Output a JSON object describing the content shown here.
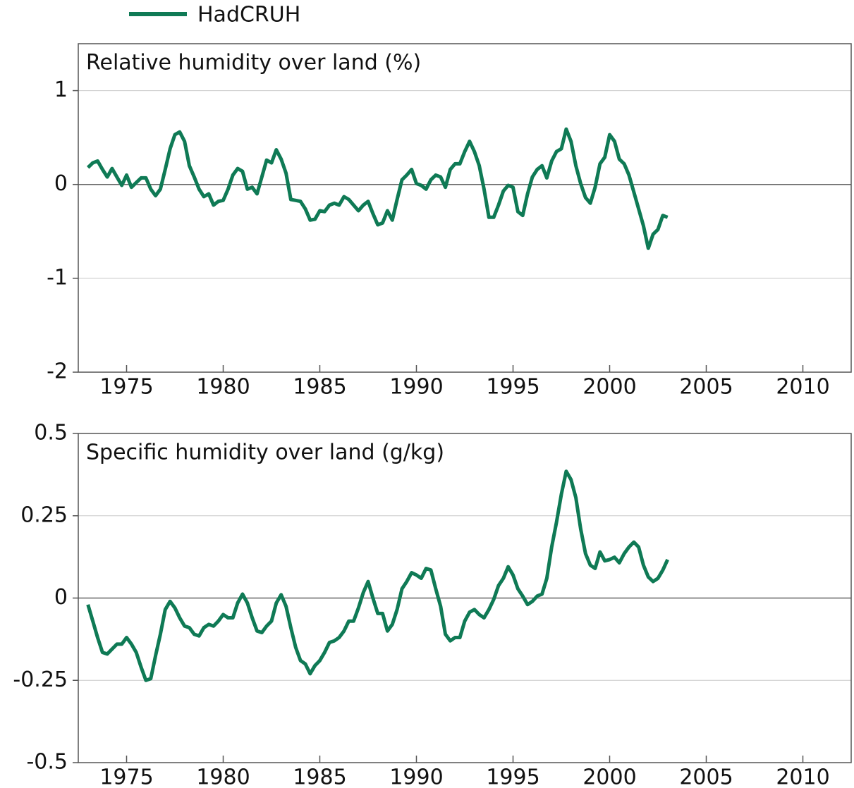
{
  "chart_data": [
    {
      "type": "line",
      "title": "Relative humidity over land (%)",
      "x": [
        1973,
        1973.25,
        1973.5,
        1973.75,
        1974,
        1974.25,
        1974.5,
        1974.75,
        1975,
        1975.25,
        1975.5,
        1975.75,
        1976,
        1976.25,
        1976.5,
        1976.75,
        1977,
        1977.25,
        1977.5,
        1977.75,
        1978,
        1978.25,
        1978.5,
        1978.75,
        1979,
        1979.25,
        1979.5,
        1979.75,
        1980,
        1980.25,
        1980.5,
        1980.75,
        1981,
        1981.25,
        1981.5,
        1981.75,
        1982,
        1982.25,
        1982.5,
        1982.75,
        1983,
        1983.25,
        1983.5,
        1983.75,
        1984,
        1984.25,
        1984.5,
        1984.75,
        1985,
        1985.25,
        1985.5,
        1985.75,
        1986,
        1986.25,
        1986.5,
        1986.75,
        1987,
        1987.25,
        1987.5,
        1987.75,
        1988,
        1988.25,
        1988.5,
        1988.75,
        1989,
        1989.25,
        1989.5,
        1989.75,
        1990,
        1990.25,
        1990.5,
        1990.75,
        1991,
        1991.25,
        1991.5,
        1991.75,
        1992,
        1992.25,
        1992.5,
        1992.75,
        1993,
        1993.25,
        1993.5,
        1993.75,
        1994,
        1994.25,
        1994.5,
        1994.75,
        1995,
        1995.25,
        1995.5,
        1995.75,
        1996,
        1996.25,
        1996.5,
        1996.75,
        1997,
        1997.25,
        1997.5,
        1997.75,
        1998,
        1998.25,
        1998.5,
        1998.75,
        1999,
        1999.25,
        1999.5,
        1999.75,
        2000,
        2000.25,
        2000.5,
        2000.75,
        2001,
        2001.25,
        2001.5,
        2001.75,
        2002,
        2002.25,
        2002.5,
        2002.75,
        2003
      ],
      "series": [
        {
          "name": "HadCRUH",
          "color": "#0f7a55",
          "values": [
            0.18,
            0.23,
            0.25,
            0.16,
            0.08,
            0.17,
            0.08,
            -0.01,
            0.1,
            -0.03,
            0.02,
            0.07,
            0.07,
            -0.05,
            -0.12,
            -0.05,
            0.16,
            0.38,
            0.53,
            0.56,
            0.46,
            0.2,
            0.08,
            -0.05,
            -0.13,
            -0.1,
            -0.22,
            -0.18,
            -0.17,
            -0.05,
            0.1,
            0.17,
            0.14,
            -0.05,
            -0.03,
            -0.1,
            0.08,
            0.26,
            0.23,
            0.37,
            0.27,
            0.12,
            -0.16,
            -0.17,
            -0.18,
            -0.26,
            -0.38,
            -0.37,
            -0.28,
            -0.29,
            -0.22,
            -0.2,
            -0.22,
            -0.13,
            -0.16,
            -0.22,
            -0.28,
            -0.22,
            -0.18,
            -0.31,
            -0.43,
            -0.41,
            -0.28,
            -0.38,
            -0.16,
            0.05,
            0.1,
            0.16,
            0.01,
            -0.01,
            -0.05,
            0.05,
            0.1,
            0.08,
            -0.03,
            0.16,
            0.22,
            0.22,
            0.35,
            0.46,
            0.35,
            0.2,
            -0.05,
            -0.35,
            -0.35,
            -0.22,
            -0.07,
            -0.01,
            -0.03,
            -0.29,
            -0.33,
            -0.1,
            0.08,
            0.16,
            0.2,
            0.07,
            0.25,
            0.35,
            0.38,
            0.59,
            0.46,
            0.2,
            0.01,
            -0.14,
            -0.2,
            -0.03,
            0.22,
            0.29,
            0.53,
            0.46,
            0.27,
            0.22,
            0.1,
            -0.08,
            -0.26,
            -0.44,
            -0.68,
            -0.53,
            -0.48,
            -0.33,
            -0.35
          ]
        }
      ],
      "xlim": [
        1972.5,
        2012.5
      ],
      "xticks": [
        1975,
        1980,
        1985,
        1990,
        1995,
        2000,
        2005,
        2010
      ],
      "ylim": [
        -2,
        1.5
      ],
      "yticks": [
        -2,
        -1,
        0,
        1
      ],
      "grid": true
    },
    {
      "type": "line",
      "title": "Specific humidity over land (g/kg)",
      "x": [
        1973,
        1973.25,
        1973.5,
        1973.75,
        1974,
        1974.25,
        1974.5,
        1974.75,
        1975,
        1975.25,
        1975.5,
        1975.75,
        1976,
        1976.25,
        1976.5,
        1976.75,
        1977,
        1977.25,
        1977.5,
        1977.75,
        1978,
        1978.25,
        1978.5,
        1978.75,
        1979,
        1979.25,
        1979.5,
        1979.75,
        1980,
        1980.25,
        1980.5,
        1980.75,
        1981,
        1981.25,
        1981.5,
        1981.75,
        1982,
        1982.25,
        1982.5,
        1982.75,
        1983,
        1983.25,
        1983.5,
        1983.75,
        1984,
        1984.25,
        1984.5,
        1984.75,
        1985,
        1985.25,
        1985.5,
        1985.75,
        1986,
        1986.25,
        1986.5,
        1986.75,
        1987,
        1987.25,
        1987.5,
        1987.75,
        1988,
        1988.25,
        1988.5,
        1988.75,
        1989,
        1989.25,
        1989.5,
        1989.75,
        1990,
        1990.25,
        1990.5,
        1990.75,
        1991,
        1991.25,
        1991.5,
        1991.75,
        1992,
        1992.25,
        1992.5,
        1992.75,
        1993,
        1993.25,
        1993.5,
        1993.75,
        1994,
        1994.25,
        1994.5,
        1994.75,
        1995,
        1995.25,
        1995.5,
        1995.75,
        1996,
        1996.25,
        1996.5,
        1996.75,
        1997,
        1997.25,
        1997.5,
        1997.75,
        1998,
        1998.25,
        1998.5,
        1998.75,
        1999,
        1999.25,
        1999.5,
        1999.75,
        2000,
        2000.25,
        2000.5,
        2000.75,
        2001,
        2001.25,
        2001.5,
        2001.75,
        2002,
        2002.25,
        2002.5,
        2002.75,
        2003
      ],
      "series": [
        {
          "color": "#0f7a55",
          "values": [
            -0.02,
            -0.07,
            -0.12,
            -0.165,
            -0.17,
            -0.155,
            -0.14,
            -0.14,
            -0.12,
            -0.14,
            -0.165,
            -0.21,
            -0.25,
            -0.245,
            -0.175,
            -0.11,
            -0.035,
            -0.01,
            -0.03,
            -0.06,
            -0.085,
            -0.09,
            -0.11,
            -0.115,
            -0.09,
            -0.08,
            -0.085,
            -0.07,
            -0.05,
            -0.06,
            -0.06,
            -0.015,
            0.012,
            -0.015,
            -0.06,
            -0.1,
            -0.105,
            -0.085,
            -0.07,
            -0.015,
            0.01,
            -0.025,
            -0.09,
            -0.15,
            -0.19,
            -0.2,
            -0.23,
            -0.205,
            -0.19,
            -0.165,
            -0.135,
            -0.13,
            -0.12,
            -0.1,
            -0.07,
            -0.07,
            -0.03,
            0.017,
            0.05,
            0,
            -0.047,
            -0.047,
            -0.1,
            -0.08,
            -0.035,
            0.028,
            0.05,
            0.077,
            0.07,
            0.06,
            0.09,
            0.085,
            0.028,
            -0.025,
            -0.11,
            -0.13,
            -0.12,
            -0.12,
            -0.07,
            -0.043,
            -0.035,
            -0.05,
            -0.06,
            -0.035,
            -0.004,
            0.038,
            0.06,
            0.095,
            0.07,
            0.028,
            0.006,
            -0.02,
            -0.01,
            0.006,
            0.012,
            0.06,
            0.155,
            0.23,
            0.315,
            0.385,
            0.36,
            0.305,
            0.21,
            0.135,
            0.1,
            0.09,
            0.14,
            0.113,
            0.117,
            0.124,
            0.107,
            0.135,
            0.155,
            0.17,
            0.155,
            0.1,
            0.064,
            0.05,
            0.06,
            0.085,
            0.117
          ]
        }
      ],
      "xlim": [
        1972.5,
        2012.5
      ],
      "xticks": [
        1975,
        1980,
        1985,
        1990,
        1995,
        2000,
        2005,
        2010
      ],
      "ylim": [
        -0.5,
        0.5
      ],
      "yticks": [
        -0.5,
        -0.25,
        0,
        0.25,
        0.5
      ],
      "grid": true
    }
  ]
}
